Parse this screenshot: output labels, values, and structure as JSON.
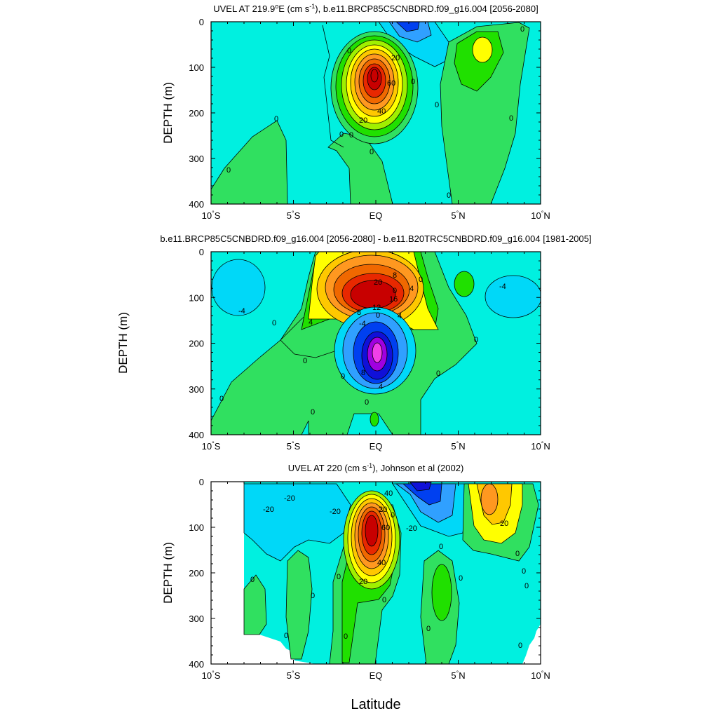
{
  "figure": {
    "xlabel": "Latitude"
  },
  "panels": [
    {
      "id": "top",
      "title_parts": {
        "pre": "UVEL AT 219.9",
        "sup1": "o",
        "mid": "E (cm s",
        "sup2": "-1",
        "post": "), b.e11.BRCP85C5CNBDRD.f09_g16.004 [2056-2080]"
      },
      "ylabel": "DEPTH (m)",
      "contour_labels": [
        "20",
        "60",
        "40",
        "20",
        "0",
        "0",
        "0",
        "0",
        "0",
        "0",
        "0",
        "0",
        "0",
        "0",
        "0"
      ]
    },
    {
      "id": "middle",
      "title": "b.e11.BRCP85C5CNBDRD.f09_g16.004 [2056-2080] - b.e11.B20TRC5CNBDRD.f09_g16.004 [1981-2005]",
      "ylabel": "DEPTH (m)",
      "contour_labels": [
        "20",
        "8",
        "4",
        "16",
        "12",
        "8",
        "4",
        "-4",
        "-4",
        "-4",
        "8",
        "4",
        "4",
        "0",
        "0",
        "0",
        "0",
        "0",
        "0",
        "0",
        "0",
        "0",
        "0",
        "0"
      ]
    },
    {
      "id": "bottom",
      "title_parts": {
        "pre": "UVEL AT 220 (cm s",
        "sup1": "-1",
        "post": "), Johnson et al (2002)"
      },
      "ylabel": "DEPTH (m)",
      "contour_labels": [
        "-20",
        "-20",
        "-20",
        "-20",
        "40",
        "20",
        "0",
        "60",
        "40",
        "20",
        "0",
        "20",
        "0",
        "0",
        "0",
        "0",
        "0",
        "0",
        "0",
        "0",
        "0",
        "0",
        "0",
        "0"
      ]
    }
  ],
  "chart_data": [
    {
      "type": "heatmap",
      "title": "UVEL AT 219.9°E (cm s-1), b.e11.BRCP85C5CNBDRD.f09_g16.004 [2056-2080]",
      "xlabel": "Latitude",
      "ylabel": "DEPTH (m)",
      "x_ticks": [
        -10,
        -5,
        0,
        5,
        10
      ],
      "x_tick_labels": [
        "10",
        "5",
        "EQ",
        "5",
        "10"
      ],
      "x_tick_suffix": [
        "°S",
        "°S",
        "",
        "°N",
        "°N"
      ],
      "y_ticks": [
        0,
        100,
        200,
        300,
        400
      ],
      "y_tick_labels": [
        "0",
        "100",
        "200",
        "300",
        "400"
      ],
      "xlim": [
        -10,
        10
      ],
      "ylim": [
        0,
        400
      ],
      "features": [
        {
          "name": "Equatorial Undercurrent core",
          "lat": 0,
          "depth": 115,
          "value": 100
        },
        {
          "name": "North Equatorial Countercurrent",
          "lat": 6.3,
          "depth": 60,
          "value": 40
        },
        {
          "name": "surface westward flow",
          "lat": 2.5,
          "depth": 10,
          "value": -40
        }
      ]
    },
    {
      "type": "heatmap",
      "title": "b.e11.BRCP85C5CNBDRD.f09_g16.004 [2056-2080] - b.e11.B20TRC5CNBDRD.f09_g16.004 [1981-2005]",
      "xlabel": "Latitude",
      "ylabel": "DEPTH (m)",
      "x_ticks": [
        -10,
        -5,
        0,
        5,
        10
      ],
      "x_tick_labels": [
        "10",
        "5",
        "EQ",
        "5",
        "10"
      ],
      "x_tick_suffix": [
        "°S",
        "°S",
        "",
        "°N",
        "°N"
      ],
      "y_ticks": [
        0,
        100,
        200,
        300,
        400
      ],
      "y_tick_labels": [
        "0",
        "100",
        "200",
        "300",
        "400"
      ],
      "xlim": [
        -10,
        10
      ],
      "ylim": [
        0,
        400
      ],
      "features": [
        {
          "name": "positive anomaly core",
          "lat": -0.2,
          "depth": 95,
          "value": 24
        },
        {
          "name": "negative anomaly core",
          "lat": -0.2,
          "depth": 220,
          "value": -20
        },
        {
          "name": "southern negative lobe",
          "lat": -9,
          "depth": 70,
          "value": -4
        },
        {
          "name": "northern negative lobe",
          "lat": 8,
          "depth": 95,
          "value": -4
        }
      ]
    },
    {
      "type": "heatmap",
      "title": "UVEL AT 220 (cm s-1), Johnson et al (2002)",
      "xlabel": "Latitude",
      "ylabel": "DEPTH (m)",
      "x_ticks": [
        -10,
        -5,
        0,
        5,
        10
      ],
      "x_tick_labels": [
        "10",
        "5",
        "EQ",
        "5",
        "10"
      ],
      "x_tick_suffix": [
        "°S",
        "°S",
        "",
        "°N",
        "°N"
      ],
      "y_ticks": [
        0,
        100,
        200,
        300,
        400
      ],
      "y_tick_labels": [
        "0",
        "100",
        "200",
        "300",
        "400"
      ],
      "xlim": [
        -10,
        10
      ],
      "ylim": [
        0,
        400
      ],
      "features": [
        {
          "name": "Equatorial Undercurrent core",
          "lat": -0.1,
          "depth": 110,
          "value": 100
        },
        {
          "name": "North Equatorial Countercurrent",
          "lat": 6.8,
          "depth": 30,
          "value": 40
        },
        {
          "name": "South Equatorial Current",
          "lat": 2.5,
          "depth": 15,
          "value": -60
        }
      ]
    }
  ],
  "colors": {
    "plot_background": "#00f0e0",
    "neg_ramp": [
      "#00f0e0",
      "#00d8f8",
      "#30a0ff",
      "#0040f0",
      "#1010d8",
      "#a000e0",
      "#f040e8"
    ],
    "pos_ramp": [
      "#30e060",
      "#20e000",
      "#a0f000",
      "#ffff00",
      "#ffc800",
      "#ff9820",
      "#f06800",
      "#e82800",
      "#c80000"
    ]
  }
}
